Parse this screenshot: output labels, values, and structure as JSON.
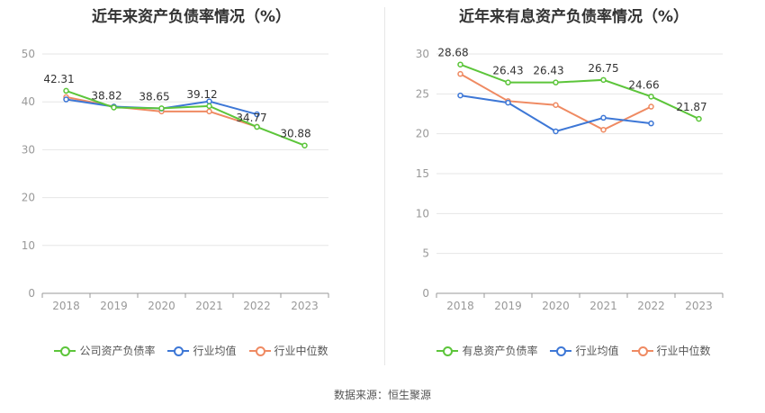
{
  "chart_data": [
    {
      "type": "line",
      "title": "近年来资产负债率情况（%）",
      "categories": [
        "2018",
        "2019",
        "2020",
        "2021",
        "2022",
        "2023"
      ],
      "ylim": [
        0,
        50
      ],
      "yticks": [
        0,
        10,
        20,
        30,
        40,
        50
      ],
      "grid": true,
      "legend_position": "bottom",
      "series": [
        {
          "name": "公司资产负债率",
          "color": "#5cc53a",
          "values": [
            42.31,
            38.82,
            38.65,
            39.12,
            34.77,
            30.88
          ],
          "labels": [
            "42.31",
            "38.82",
            "38.65",
            "39.12",
            "34.77",
            "30.88"
          ]
        },
        {
          "name": "行业均值",
          "color": "#3d77d6",
          "values": [
            40.5,
            39.0,
            38.6,
            40.1,
            37.4,
            null
          ]
        },
        {
          "name": "行业中位数",
          "color": "#ef8a62",
          "values": [
            41.0,
            39.0,
            38.0,
            38.0,
            34.8,
            null
          ]
        }
      ]
    },
    {
      "type": "line",
      "title": "近年来有息资产负债率情况（%）",
      "categories": [
        "2018",
        "2019",
        "2020",
        "2021",
        "2022",
        "2023"
      ],
      "ylim": [
        0,
        30
      ],
      "yticks": [
        0,
        5,
        10,
        15,
        20,
        25,
        30
      ],
      "grid": true,
      "legend_position": "bottom",
      "series": [
        {
          "name": "有息资产负债率",
          "color": "#5cc53a",
          "values": [
            28.68,
            26.43,
            26.43,
            26.75,
            24.66,
            21.87
          ],
          "labels": [
            "28.68",
            "26.43",
            "26.43",
            "26.75",
            "24.66",
            "21.87"
          ]
        },
        {
          "name": "行业均值",
          "color": "#3d77d6",
          "values": [
            24.8,
            23.9,
            20.3,
            22.0,
            21.3,
            null
          ]
        },
        {
          "name": "行业中位数",
          "color": "#ef8a62",
          "values": [
            27.5,
            24.1,
            23.6,
            20.5,
            23.4,
            null
          ]
        }
      ]
    }
  ],
  "source": "数据来源：恒生聚源"
}
